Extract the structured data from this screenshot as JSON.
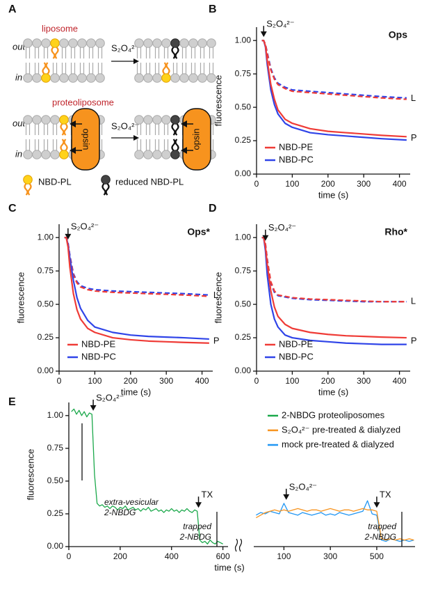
{
  "figure": {
    "panel_labels": [
      "A",
      "B",
      "C",
      "D",
      "E"
    ],
    "diagram": {
      "liposome": "liposome",
      "proteoliposome": "proteoliposome",
      "out": "out",
      "in": "in",
      "reagent": "S₂O₄²⁻",
      "protein": "opsin",
      "legend": [
        "NBD-PL",
        "reduced NBD-PL"
      ]
    }
  },
  "chart_data": [
    {
      "type": "line",
      "title": "Ops",
      "xlabel": "time (s)",
      "ylabel": "fluorescence",
      "x": [
        15,
        20,
        25,
        30,
        40,
        50,
        60,
        80,
        100,
        150,
        200,
        250,
        300,
        350,
        420
      ],
      "xlim": [
        0,
        430
      ],
      "ylim": [
        0,
        1.1
      ],
      "xticks": [
        0,
        100,
        200,
        300,
        400
      ],
      "yticks": [
        {
          "value": 0,
          "label": "0.00"
        },
        {
          "value": 0.25,
          "label": "0.25"
        },
        {
          "value": 0.5,
          "label": "0.50"
        },
        {
          "value": 0.75,
          "label": "0.75"
        },
        {
          "value": 1,
          "label": "1.00"
        }
      ],
      "legend": "lower-left",
      "annotations": [
        {
          "text": "S₂O₄²⁻",
          "x": 20
        }
      ],
      "curve_sets": [
        {
          "label": "P",
          "dashed": false,
          "series": [
            {
              "name": "NBD-PE",
              "color": "#ef3b36",
              "values": [
                1.0,
                1.0,
                0.96,
                0.85,
                0.67,
                0.56,
                0.48,
                0.41,
                0.38,
                0.34,
                0.32,
                0.31,
                0.3,
                0.29,
                0.28
              ]
            },
            {
              "name": "NBD-PC",
              "color": "#2f44e8",
              "values": [
                1.0,
                1.0,
                0.95,
                0.82,
                0.63,
                0.52,
                0.45,
                0.38,
                0.35,
                0.31,
                0.295,
                0.285,
                0.275,
                0.265,
                0.255
              ]
            }
          ]
        },
        {
          "label": "L",
          "dashed": true,
          "series": [
            {
              "color": "#ef3b36",
              "values": [
                1.0,
                1.0,
                0.97,
                0.9,
                0.78,
                0.71,
                0.67,
                0.64,
                0.62,
                0.61,
                0.6,
                0.59,
                0.58,
                0.57,
                0.56
              ]
            },
            {
              "color": "#2f44e8",
              "values": [
                1.0,
                1.0,
                0.97,
                0.91,
                0.79,
                0.72,
                0.68,
                0.65,
                0.63,
                0.62,
                0.61,
                0.6,
                0.59,
                0.58,
                0.57
              ]
            }
          ]
        }
      ]
    },
    {
      "type": "line",
      "title": "Ops*",
      "xlabel": "time (s)",
      "ylabel": "fluorescence",
      "x": [
        15,
        20,
        25,
        30,
        40,
        50,
        60,
        80,
        100,
        150,
        200,
        250,
        300,
        350,
        420
      ],
      "xlim": [
        0,
        430
      ],
      "ylim": [
        0,
        1.1
      ],
      "xticks": [
        0,
        100,
        200,
        300,
        400
      ],
      "yticks": [
        {
          "value": 0,
          "label": "0.00"
        },
        {
          "value": 0.25,
          "label": "0.25"
        },
        {
          "value": 0.5,
          "label": "0.50"
        },
        {
          "value": 0.75,
          "label": "0.75"
        },
        {
          "value": 1,
          "label": "1.00"
        }
      ],
      "legend": "lower-left",
      "annotations": [
        {
          "text": "S₂O₄²⁻",
          "x": 25
        }
      ],
      "curve_sets": [
        {
          "label": "P",
          "dashed": false,
          "series": [
            {
              "name": "NBD-PE",
              "color": "#ef3b36",
              "values": [
                1.0,
                1.0,
                0.93,
                0.78,
                0.58,
                0.46,
                0.39,
                0.32,
                0.29,
                0.25,
                0.235,
                0.225,
                0.22,
                0.215,
                0.21
              ]
            },
            {
              "name": "NBD-PC",
              "color": "#2f44e8",
              "values": [
                1.0,
                1.0,
                0.95,
                0.85,
                0.68,
                0.55,
                0.47,
                0.38,
                0.33,
                0.29,
                0.27,
                0.26,
                0.255,
                0.25,
                0.24
              ]
            }
          ]
        },
        {
          "label": "L",
          "dashed": true,
          "series": [
            {
              "color": "#ef3b36",
              "values": [
                1.0,
                1.0,
                0.96,
                0.86,
                0.72,
                0.66,
                0.63,
                0.61,
                0.6,
                0.59,
                0.585,
                0.58,
                0.575,
                0.57,
                0.56
              ]
            },
            {
              "color": "#2f44e8",
              "values": [
                1.0,
                1.0,
                0.96,
                0.87,
                0.73,
                0.67,
                0.64,
                0.62,
                0.61,
                0.6,
                0.595,
                0.59,
                0.585,
                0.58,
                0.57
              ]
            }
          ]
        }
      ]
    },
    {
      "type": "line",
      "title": "Rho*",
      "xlabel": "time (s)",
      "ylabel": "fluorescence",
      "x": [
        15,
        20,
        25,
        30,
        40,
        50,
        60,
        80,
        100,
        150,
        200,
        250,
        300,
        350,
        420
      ],
      "xlim": [
        0,
        430
      ],
      "ylim": [
        0,
        1.1
      ],
      "xticks": [
        0,
        100,
        200,
        300,
        400
      ],
      "yticks": [
        {
          "value": 0,
          "label": "0.00"
        },
        {
          "value": 0.25,
          "label": "0.25"
        },
        {
          "value": 0.5,
          "label": "0.50"
        },
        {
          "value": 0.75,
          "label": "0.75"
        },
        {
          "value": 1,
          "label": "1.00"
        }
      ],
      "legend": "lower-left",
      "annotations": [
        {
          "text": "S₂O₄²⁻",
          "x": 25
        }
      ],
      "curve_sets": [
        {
          "label": "P",
          "dashed": false,
          "series": [
            {
              "name": "NBD-PE",
              "color": "#ef3b36",
              "values": [
                1.0,
                1.0,
                0.93,
                0.8,
                0.6,
                0.48,
                0.41,
                0.35,
                0.32,
                0.29,
                0.275,
                0.265,
                0.26,
                0.255,
                0.25
              ]
            },
            {
              "name": "NBD-PC",
              "color": "#2f44e8",
              "values": [
                1.0,
                1.0,
                0.9,
                0.72,
                0.5,
                0.39,
                0.33,
                0.27,
                0.25,
                0.23,
                0.22,
                0.21,
                0.205,
                0.2,
                0.2
              ]
            }
          ]
        },
        {
          "label": "L",
          "dashed": true,
          "series": [
            {
              "color": "#ef3b36",
              "values": [
                1.0,
                1.0,
                0.95,
                0.83,
                0.67,
                0.6,
                0.57,
                0.56,
                0.55,
                0.54,
                0.535,
                0.53,
                0.525,
                0.52,
                0.52
              ]
            },
            {
              "color": "#2f44e8",
              "values": [
                1.0,
                1.0,
                0.95,
                0.84,
                0.66,
                0.59,
                0.565,
                0.555,
                0.545,
                0.535,
                0.53,
                0.525,
                0.52,
                0.52,
                0.52
              ]
            }
          ]
        }
      ]
    },
    {
      "type": "line",
      "xlabel": "time (s)",
      "ylabel": "fluorescence",
      "x": [
        10,
        20,
        30,
        40,
        50,
        60,
        70,
        80,
        90,
        100,
        110,
        120,
        130,
        140,
        150,
        160,
        170,
        180,
        190,
        200,
        210,
        220,
        230,
        240,
        250,
        260,
        270,
        280,
        290,
        300,
        310,
        320,
        330,
        340,
        350,
        360,
        370,
        380,
        390,
        400,
        410,
        420,
        430,
        440,
        450,
        460,
        470,
        480,
        490,
        500,
        510,
        520,
        530,
        540,
        550,
        560,
        570,
        580,
        590,
        600
      ],
      "xlim": [
        0,
        620
      ],
      "ylim": [
        0,
        1.1
      ],
      "xticks": [
        0,
        200,
        400,
        600
      ],
      "yticks": [
        {
          "value": 0,
          "label": "0.00"
        },
        {
          "value": 0.25,
          "label": "0.25"
        },
        {
          "value": 0.5,
          "label": "0.50"
        },
        {
          "value": 0.75,
          "label": "0.75"
        },
        {
          "value": 1,
          "label": "1.00"
        }
      ],
      "legend": "upper-right",
      "annotations": [
        {
          "text": "S₂O₄²⁻",
          "x": 95
        },
        {
          "text": "TX",
          "x": 505
        }
      ],
      "notes": [
        [
          "extra-vesicular",
          "2-NBDG"
        ],
        [
          "trapped",
          "2-NBDG"
        ]
      ],
      "series": [
        {
          "name": "2-NBDG proteoliposomes",
          "color": "#1aa84a",
          "values": [
            1.03,
            1.05,
            1.01,
            1.04,
            1.0,
            1.03,
            0.99,
            1.02,
            1.01,
            0.55,
            0.33,
            0.31,
            0.32,
            0.3,
            0.31,
            0.29,
            0.31,
            0.3,
            0.28,
            0.3,
            0.29,
            0.31,
            0.28,
            0.29,
            0.3,
            0.28,
            0.29,
            0.27,
            0.29,
            0.28,
            0.3,
            0.27,
            0.28,
            0.29,
            0.27,
            0.28,
            0.26,
            0.28,
            0.27,
            0.29,
            0.27,
            0.28,
            0.26,
            0.28,
            0.27,
            0.29,
            0.27,
            0.26,
            0.28,
            0.27,
            0.05,
            0.03,
            0.04,
            0.02,
            0.05,
            0.03,
            0.02,
            0.04,
            0.03,
            0.02
          ]
        }
      ]
    },
    {
      "type": "line",
      "x": [
        -20,
        0,
        20,
        40,
        60,
        80,
        100,
        120,
        140,
        160,
        180,
        200,
        220,
        240,
        260,
        280,
        300,
        320,
        340,
        360,
        380,
        400,
        420,
        440,
        460,
        480,
        500,
        520,
        540,
        560,
        580,
        600,
        620,
        640,
        660
      ],
      "xlim": [
        -30,
        665
      ],
      "ylim": [
        0,
        1.1
      ],
      "xticks": [
        100,
        300,
        500
      ],
      "legend": "upper-right",
      "annotations": [
        {
          "text": "S₂O₄²⁻",
          "x": 110
        },
        {
          "text": "TX",
          "x": 500
        }
      ],
      "notes": [
        [
          "trapped",
          "2-NBDG"
        ]
      ],
      "series": [
        {
          "name": "S₂O₄²⁻ pre-treated & dialyzed",
          "color": "#f7931e",
          "values": [
            0.22,
            0.24,
            0.26,
            0.27,
            0.28,
            0.27,
            0.28,
            0.27,
            0.28,
            0.29,
            0.28,
            0.27,
            0.28,
            0.28,
            0.27,
            0.28,
            0.29,
            0.28,
            0.27,
            0.28,
            0.28,
            0.27,
            0.28,
            0.29,
            0.28,
            0.28,
            0.27,
            0.06,
            0.05,
            0.06,
            0.05,
            0.06,
            0.05,
            0.06,
            0.05
          ]
        },
        {
          "name": "mock pre-treated & dialyzed",
          "color": "#2196f3",
          "values": [
            0.24,
            0.26,
            0.25,
            0.27,
            0.26,
            0.25,
            0.33,
            0.26,
            0.25,
            0.24,
            0.26,
            0.25,
            0.24,
            0.25,
            0.26,
            0.24,
            0.25,
            0.24,
            0.26,
            0.25,
            0.24,
            0.25,
            0.26,
            0.27,
            0.35,
            0.25,
            0.24,
            0.05,
            0.04,
            0.06,
            0.05,
            0.04,
            0.05,
            0.04,
            0.05
          ]
        }
      ]
    }
  ]
}
